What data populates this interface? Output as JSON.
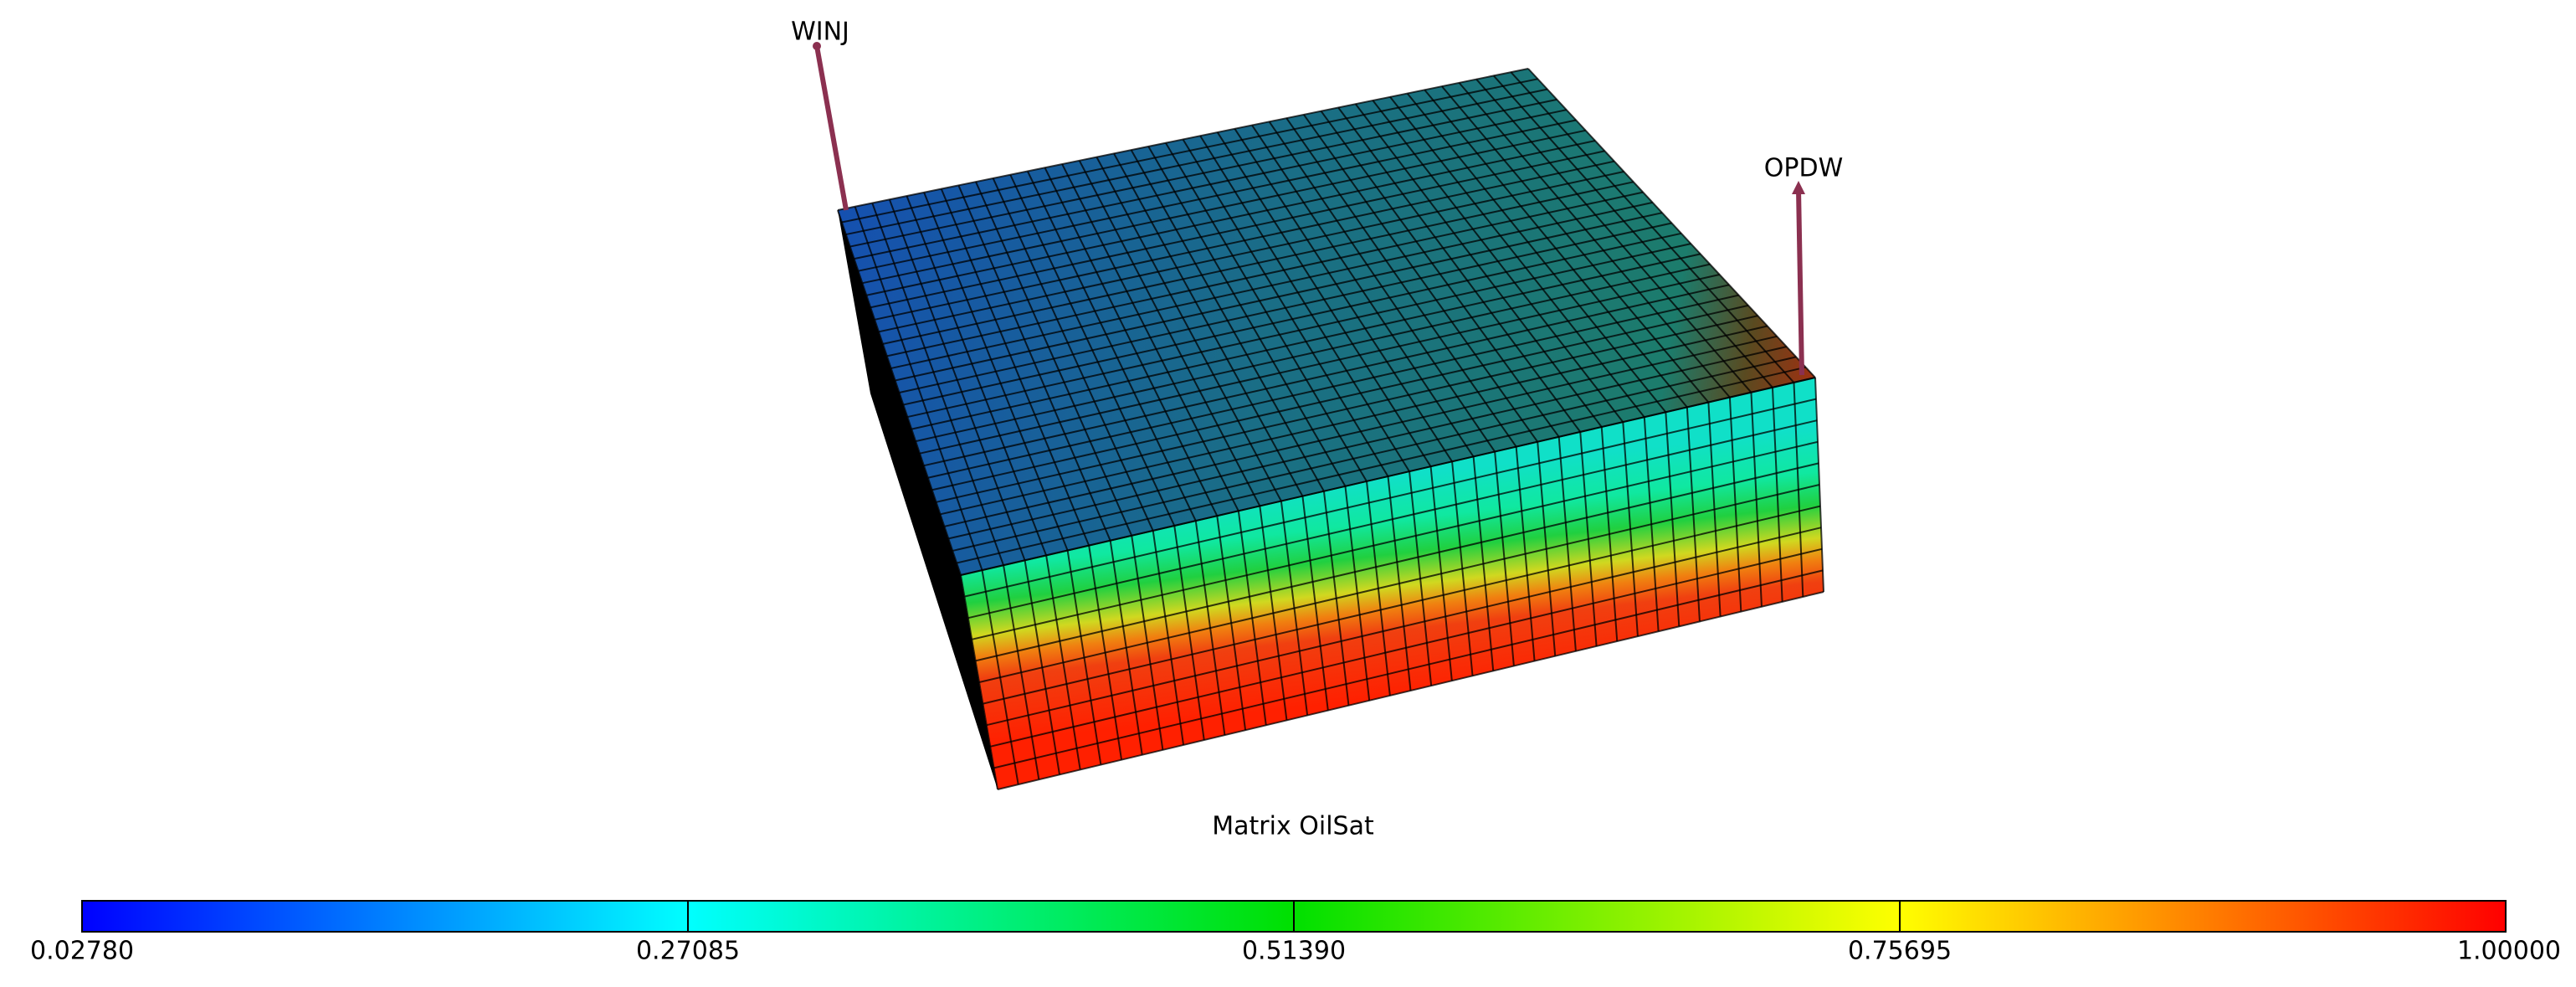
{
  "wells": [
    {
      "label": "WINJ"
    },
    {
      "label": "OPDW"
    }
  ],
  "colorbar": {
    "title": "Matrix OilSat",
    "range": [
      0.0278,
      1.0
    ],
    "ticks": [
      {
        "value": 0.0278,
        "label": "0.02780"
      },
      {
        "value": 0.27085,
        "label": "0.27085"
      },
      {
        "value": 0.5139,
        "label": "0.51390"
      },
      {
        "value": 0.75695,
        "label": "0.75695"
      },
      {
        "value": 1.0,
        "label": "1.00000"
      }
    ]
  }
}
